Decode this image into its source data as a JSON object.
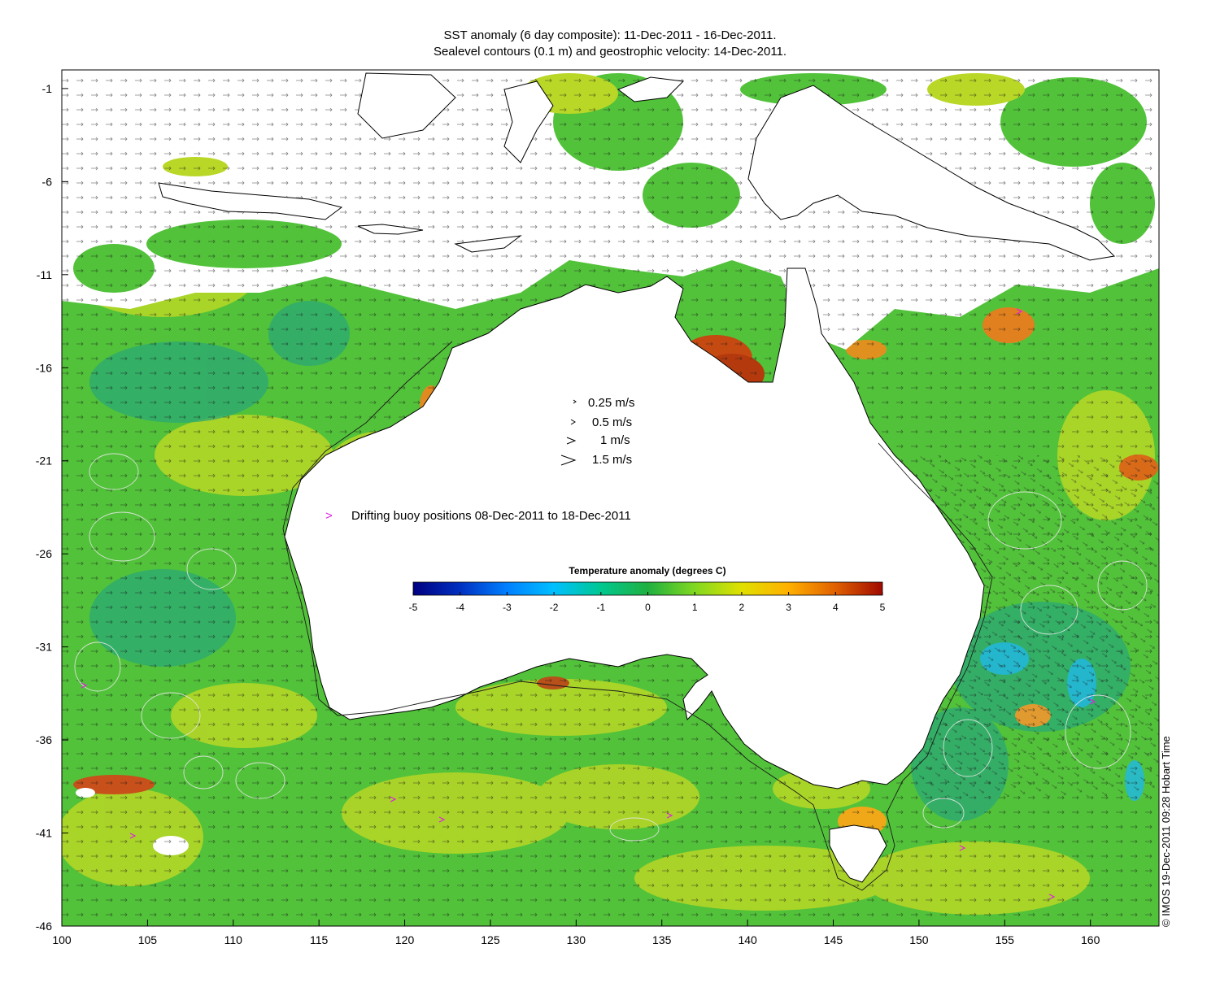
{
  "title": {
    "line1": "SST anomaly (6 day composite): 11-Dec-2011 - 16-Dec-2011.",
    "line2": "Sealevel contours (0.1 m) and geostrophic velocity: 14-Dec-2011."
  },
  "axes": {
    "x_ticks": [
      "100",
      "105",
      "110",
      "115",
      "120",
      "125",
      "130",
      "135",
      "140",
      "145",
      "150",
      "155",
      "160"
    ],
    "y_ticks": [
      "-1",
      "-6",
      "-11",
      "-16",
      "-21",
      "-26",
      "-31",
      "-36",
      "-41",
      "-46"
    ],
    "x_range": [
      100,
      164
    ],
    "y_range": [
      -46,
      0
    ]
  },
  "velocity_legend": [
    {
      "label": "0.25 m/s",
      "speed": 0.25
    },
    {
      "label": "0.5 m/s",
      "speed": 0.5
    },
    {
      "label": "1 m/s",
      "speed": 1
    },
    {
      "label": "1.5 m/s",
      "speed": 1.5
    }
  ],
  "buoy_legend": {
    "symbol": ">",
    "label": "Drifting buoy positions 08-Dec-2011 to 18-Dec-2011",
    "color": "#e020e0"
  },
  "colorbar": {
    "title": "Temperature anomaly (degrees C)",
    "ticks": [
      "-5",
      "-4",
      "-3",
      "-2",
      "-1",
      "0",
      "1",
      "2",
      "3",
      "4",
      "5"
    ],
    "range": [
      -5,
      5
    ],
    "colors": [
      "#000080",
      "#0030c0",
      "#0080ff",
      "#00c0ff",
      "#00d0a0",
      "#20b040",
      "#60d020",
      "#c0e000",
      "#ffd000",
      "#ff9000",
      "#e05000",
      "#a01000"
    ]
  },
  "copyright": "© IMOS 19-Dec-2011 09:28 Hobart Time",
  "colors": {
    "ocean_base": "#52c23a",
    "ocean_warm": "#b5d824",
    "ocean_cool": "#2fb07a",
    "hot": "#d8701a",
    "land": "#ffffff",
    "coast": "#000000",
    "contour": "#e8e8e8"
  }
}
